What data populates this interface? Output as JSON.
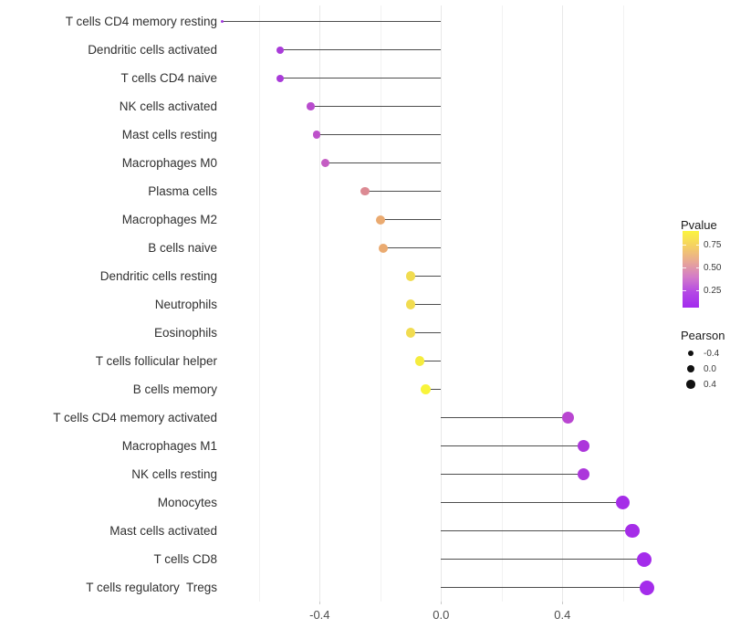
{
  "chart_data": {
    "type": "lollipop",
    "orientation": "horizontal",
    "title": "",
    "xlabel": "",
    "ylabel": "",
    "xlim": [
      -0.786,
      0.748
    ],
    "baseline": 0.0,
    "grid_on": true,
    "minor_gridlines_x": [
      -0.6,
      -0.2,
      0.2,
      0.6
    ],
    "major_gridlines_x": [
      -0.4,
      0.0,
      0.4
    ],
    "x_ticks": [
      -0.4,
      0.0,
      0.4
    ],
    "x_tick_labels": [
      "-0.4",
      "0.0",
      "0.4"
    ],
    "points": [
      {
        "label": "T cells CD4 memory resting",
        "pearson": -0.72,
        "color": "#a238e0",
        "size": 3
      },
      {
        "label": "Dendritic cells activated",
        "pearson": -0.53,
        "color": "#a93bd9",
        "size": 8
      },
      {
        "label": "T cells CD4 naive",
        "pearson": -0.53,
        "color": "#a93bd9",
        "size": 8
      },
      {
        "label": "NK cells activated",
        "pearson": -0.43,
        "color": "#b94cce",
        "size": 8.5
      },
      {
        "label": "Mast cells resting",
        "pearson": -0.41,
        "color": "#bd51ca",
        "size": 8.5
      },
      {
        "label": "Macrophages M0",
        "pearson": -0.38,
        "color": "#c45cc3",
        "size": 9
      },
      {
        "label": "Plasma cells",
        "pearson": -0.25,
        "color": "#dc8a93",
        "size": 9.5
      },
      {
        "label": "Macrophages M2",
        "pearson": -0.2,
        "color": "#eaaa70",
        "size": 10
      },
      {
        "label": "B cells naive",
        "pearson": -0.19,
        "color": "#eaaa70",
        "size": 10
      },
      {
        "label": "Dendritic cells resting",
        "pearson": -0.1,
        "color": "#f1dc50",
        "size": 10.5
      },
      {
        "label": "Neutrophils",
        "pearson": -0.1,
        "color": "#f1dc50",
        "size": 10.5
      },
      {
        "label": "Eosinophils",
        "pearson": -0.1,
        "color": "#f1dc50",
        "size": 10.5
      },
      {
        "label": "T cells follicular helper",
        "pearson": -0.07,
        "color": "#f5ec3e",
        "size": 10.7
      },
      {
        "label": "B cells memory",
        "pearson": -0.05,
        "color": "#f8f43a",
        "size": 11
      },
      {
        "label": "T cells CD4 memory activated",
        "pearson": 0.42,
        "color": "#b946d1",
        "size": 13
      },
      {
        "label": "Macrophages M1",
        "pearson": 0.47,
        "color": "#ac36db",
        "size": 13.5
      },
      {
        "label": "NK cells resting",
        "pearson": 0.47,
        "color": "#ac36db",
        "size": 13.5
      },
      {
        "label": "Monocytes",
        "pearson": 0.6,
        "color": "#a52de8",
        "size": 15
      },
      {
        "label": "Mast cells activated",
        "pearson": 0.63,
        "color": "#a52de8",
        "size": 15.5
      },
      {
        "label": "T cells CD8",
        "pearson": 0.67,
        "color": "#a42ceb",
        "size": 16
      },
      {
        "label": "T cells regulatory  Tregs",
        "pearson": 0.68,
        "color": "#a42ceb",
        "size": 16
      }
    ],
    "legend": {
      "color": {
        "title": "Pvalue",
        "tick_labels": [
          "0.75",
          "0.50",
          "0.25"
        ],
        "tick_values": [
          0.75,
          0.5,
          0.25
        ],
        "bar_range_top_to_bottom": [
          0.9,
          0.06
        ],
        "gradient_top_to_bottom": [
          "#fbf43f",
          "#f5d063",
          "#e8a895",
          "#d37bc8",
          "#b448e5",
          "#a32bee"
        ]
      },
      "size": {
        "title": "Pearson",
        "items": [
          {
            "label": "-0.4",
            "size": 6
          },
          {
            "label": "0.0",
            "size": 8
          },
          {
            "label": "0.4",
            "size": 9.5
          }
        ]
      },
      "position": "right"
    },
    "style": {
      "segment_color": "#4d4d4d",
      "major_grid_color": "#e8e8e8",
      "minor_grid_color": "#f2f2f2",
      "axis_text_color": "#4d4d4d",
      "category_text_color": "#303030",
      "background": "#ffffff"
    }
  }
}
